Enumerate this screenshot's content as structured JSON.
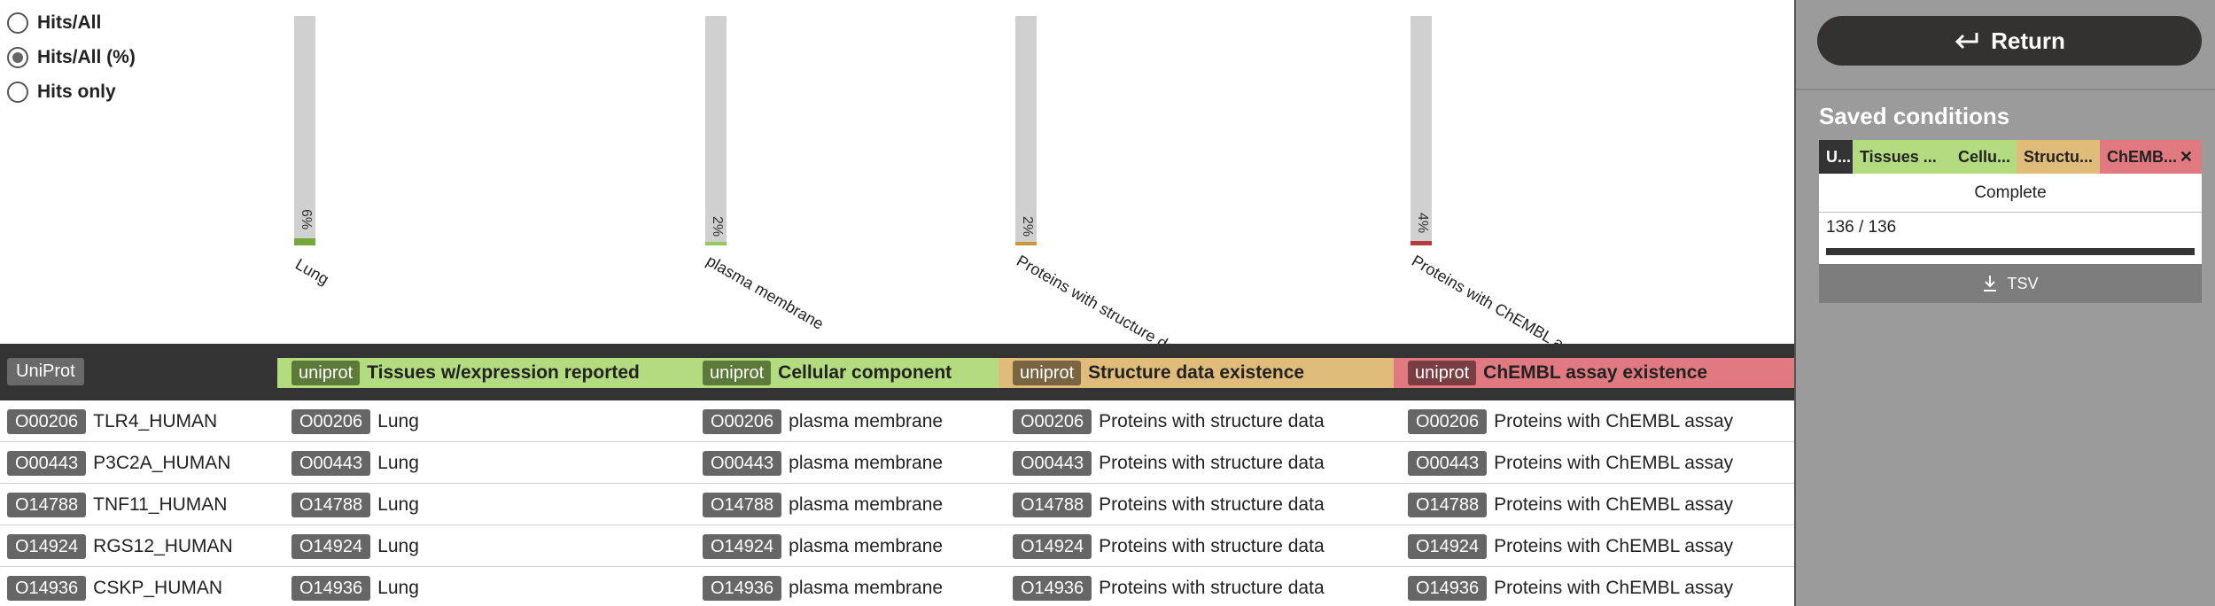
{
  "view_modes": {
    "options": [
      "Hits/All",
      "Hits/All (%)",
      "Hits only"
    ],
    "selected": "Hits/All (%)"
  },
  "histogram": [
    {
      "pct_label": "6%",
      "value": 6,
      "label": "Lung",
      "fill": "#74a83c"
    },
    {
      "pct_label": "2%",
      "value": 2,
      "label": "plasma membrane",
      "fill": "#97c95a"
    },
    {
      "pct_label": "2%",
      "value": 2,
      "label": "Proteins with structure data",
      "fill": "#c9963a"
    },
    {
      "pct_label": "4%",
      "value": 4,
      "label": "Proteins with ChEMBL assay",
      "fill": "#b33b40"
    }
  ],
  "table": {
    "first_header": "UniProt",
    "columns": [
      {
        "tag": "uniprot",
        "title": "Tissues w/expression reported",
        "bg": "#b3db7f",
        "tag_bg": "#5e7a3b",
        "tag_fg": "#ffffff"
      },
      {
        "tag": "uniprot",
        "title": "Cellular component",
        "bg": "#b3db7f",
        "tag_bg": "#5e7a3b",
        "tag_fg": "#ffffff"
      },
      {
        "tag": "uniprot",
        "title": "Structure data existence",
        "bg": "#e0bc7a",
        "tag_bg": "#7a6542",
        "tag_fg": "#ffffff"
      },
      {
        "tag": "uniprot",
        "title": "ChEMBL assay existence",
        "bg": "#e07a80",
        "tag_bg": "#7a3d41",
        "tag_fg": "#ffffff"
      }
    ],
    "rows": [
      {
        "id": "O00206",
        "name": "TLR4_HUMAN",
        "c1": "Lung",
        "c2": "plasma membrane",
        "c3": "Proteins with structure data",
        "c4": "Proteins with ChEMBL assay"
      },
      {
        "id": "O00443",
        "name": "P3C2A_HUMAN",
        "c1": "Lung",
        "c2": "plasma membrane",
        "c3": "Proteins with structure data",
        "c4": "Proteins with ChEMBL assay"
      },
      {
        "id": "O14788",
        "name": "TNF11_HUMAN",
        "c1": "Lung",
        "c2": "plasma membrane",
        "c3": "Proteins with structure data",
        "c4": "Proteins with ChEMBL assay"
      },
      {
        "id": "O14924",
        "name": "RGS12_HUMAN",
        "c1": "Lung",
        "c2": "plasma membrane",
        "c3": "Proteins with structure data",
        "c4": "Proteins with ChEMBL assay"
      },
      {
        "id": "O14936",
        "name": "CSKP_HUMAN",
        "c1": "Lung",
        "c2": "plasma membrane",
        "c3": "Proteins with structure data",
        "c4": "Proteins with ChEMBL assay"
      }
    ]
  },
  "panel": {
    "return_label": "Return",
    "saved_title": "Saved conditions",
    "tabs": [
      {
        "label": "U...",
        "bg": "#333333",
        "fg": "#ffffff"
      },
      {
        "label": "Tissues ...",
        "bg": "#b3db7f",
        "fg": "#222222"
      },
      {
        "label": "Cellu...",
        "bg": "#b3db7f",
        "fg": "#222222"
      },
      {
        "label": "Structu...",
        "bg": "#e0bc7a",
        "fg": "#222222"
      },
      {
        "label": "ChEMB...",
        "bg": "#e07a80",
        "fg": "#222222"
      }
    ],
    "close_symbol": "✕",
    "status": "Complete",
    "count": "136 / 136",
    "progress": 1.0,
    "tsv_label": "TSV"
  },
  "icons": {
    "return": "return-arrow-icon",
    "download": "download-icon",
    "close": "close-icon"
  }
}
